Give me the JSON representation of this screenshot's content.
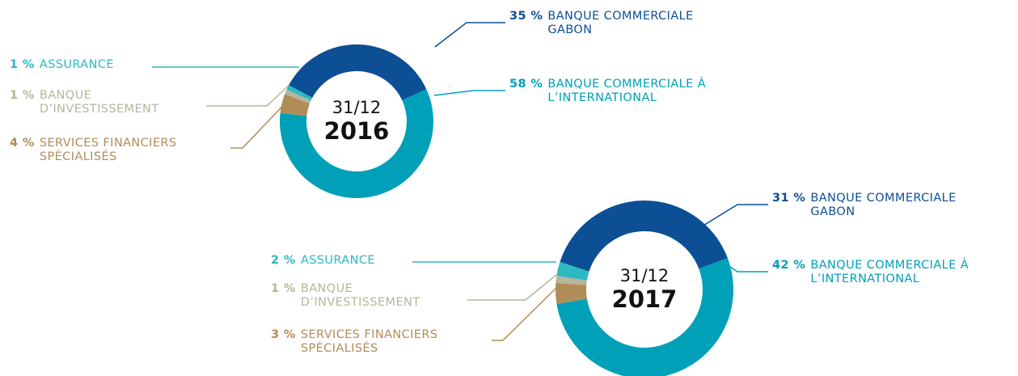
{
  "chart_data": [
    {
      "type": "donut",
      "date": "31/12",
      "title": "2016",
      "categories": [
        "BANQUE COMMERCIALE GABON",
        "BANQUE COMMERCIALE À L’INTERNATIONAL",
        "SERVICES FINANCIERS SPÉCIALISÉS",
        "BANQUE D’INVESTISSEMENT",
        "ASSURANCE"
      ],
      "values": [
        35,
        58,
        4,
        1,
        1
      ],
      "value_labels": [
        "35 %",
        "58 %",
        "4 %",
        "1 %",
        "1 %"
      ],
      "colors": [
        "#0d4f94",
        "#00a0b8",
        "#b08d57",
        "#b7b59b",
        "#2db9c1"
      ]
    },
    {
      "type": "donut",
      "date": "31/12",
      "title": "2017",
      "categories": [
        "BANQUE COMMERCIALE GABON",
        "BANQUE COMMERCIALE À L’INTERNATIONAL",
        "SERVICES FINANCIERS SPÉCIALISÉS",
        "BANQUE D’INVESTISSEMENT",
        "ASSURANCE"
      ],
      "values": [
        31,
        42,
        3,
        1,
        2
      ],
      "value_labels": [
        "31 %",
        "42 %",
        "3 %",
        "1 %",
        "2 %"
      ],
      "colors": [
        "#0d4f94",
        "#00a0b8",
        "#b08d57",
        "#b7b59b",
        "#2db9c1"
      ]
    }
  ]
}
